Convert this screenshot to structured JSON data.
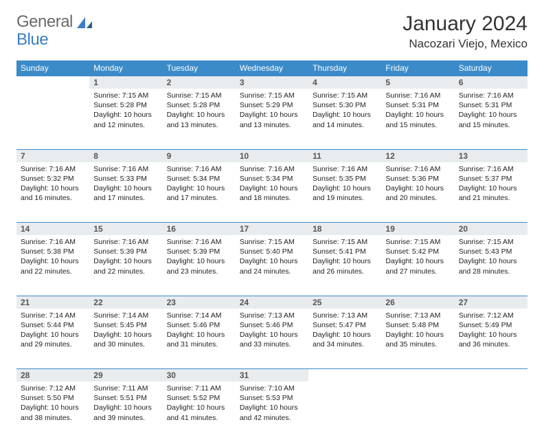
{
  "header": {
    "logo_part1": "General",
    "logo_part2": "Blue",
    "month_title": "January 2024",
    "location": "Nacozari Viejo, Mexico"
  },
  "colors": {
    "header_bg": "#3b8bc9",
    "header_text": "#ffffff",
    "daynum_bg": "#e9ecef",
    "border": "#3b8bc9",
    "body_text": "#222222",
    "logo_gray": "#6a6a6a",
    "logo_blue": "#3b7fc4"
  },
  "day_headers": [
    "Sunday",
    "Monday",
    "Tuesday",
    "Wednesday",
    "Thursday",
    "Friday",
    "Saturday"
  ],
  "weeks": [
    [
      {
        "num": "",
        "sunrise": "",
        "sunset": "",
        "daylight": ""
      },
      {
        "num": "1",
        "sunrise": "Sunrise: 7:15 AM",
        "sunset": "Sunset: 5:28 PM",
        "daylight": "Daylight: 10 hours and 12 minutes."
      },
      {
        "num": "2",
        "sunrise": "Sunrise: 7:15 AM",
        "sunset": "Sunset: 5:28 PM",
        "daylight": "Daylight: 10 hours and 13 minutes."
      },
      {
        "num": "3",
        "sunrise": "Sunrise: 7:15 AM",
        "sunset": "Sunset: 5:29 PM",
        "daylight": "Daylight: 10 hours and 13 minutes."
      },
      {
        "num": "4",
        "sunrise": "Sunrise: 7:15 AM",
        "sunset": "Sunset: 5:30 PM",
        "daylight": "Daylight: 10 hours and 14 minutes."
      },
      {
        "num": "5",
        "sunrise": "Sunrise: 7:16 AM",
        "sunset": "Sunset: 5:31 PM",
        "daylight": "Daylight: 10 hours and 15 minutes."
      },
      {
        "num": "6",
        "sunrise": "Sunrise: 7:16 AM",
        "sunset": "Sunset: 5:31 PM",
        "daylight": "Daylight: 10 hours and 15 minutes."
      }
    ],
    [
      {
        "num": "7",
        "sunrise": "Sunrise: 7:16 AM",
        "sunset": "Sunset: 5:32 PM",
        "daylight": "Daylight: 10 hours and 16 minutes."
      },
      {
        "num": "8",
        "sunrise": "Sunrise: 7:16 AM",
        "sunset": "Sunset: 5:33 PM",
        "daylight": "Daylight: 10 hours and 17 minutes."
      },
      {
        "num": "9",
        "sunrise": "Sunrise: 7:16 AM",
        "sunset": "Sunset: 5:34 PM",
        "daylight": "Daylight: 10 hours and 17 minutes."
      },
      {
        "num": "10",
        "sunrise": "Sunrise: 7:16 AM",
        "sunset": "Sunset: 5:34 PM",
        "daylight": "Daylight: 10 hours and 18 minutes."
      },
      {
        "num": "11",
        "sunrise": "Sunrise: 7:16 AM",
        "sunset": "Sunset: 5:35 PM",
        "daylight": "Daylight: 10 hours and 19 minutes."
      },
      {
        "num": "12",
        "sunrise": "Sunrise: 7:16 AM",
        "sunset": "Sunset: 5:36 PM",
        "daylight": "Daylight: 10 hours and 20 minutes."
      },
      {
        "num": "13",
        "sunrise": "Sunrise: 7:16 AM",
        "sunset": "Sunset: 5:37 PM",
        "daylight": "Daylight: 10 hours and 21 minutes."
      }
    ],
    [
      {
        "num": "14",
        "sunrise": "Sunrise: 7:16 AM",
        "sunset": "Sunset: 5:38 PM",
        "daylight": "Daylight: 10 hours and 22 minutes."
      },
      {
        "num": "15",
        "sunrise": "Sunrise: 7:16 AM",
        "sunset": "Sunset: 5:39 PM",
        "daylight": "Daylight: 10 hours and 22 minutes."
      },
      {
        "num": "16",
        "sunrise": "Sunrise: 7:16 AM",
        "sunset": "Sunset: 5:39 PM",
        "daylight": "Daylight: 10 hours and 23 minutes."
      },
      {
        "num": "17",
        "sunrise": "Sunrise: 7:15 AM",
        "sunset": "Sunset: 5:40 PM",
        "daylight": "Daylight: 10 hours and 24 minutes."
      },
      {
        "num": "18",
        "sunrise": "Sunrise: 7:15 AM",
        "sunset": "Sunset: 5:41 PM",
        "daylight": "Daylight: 10 hours and 26 minutes."
      },
      {
        "num": "19",
        "sunrise": "Sunrise: 7:15 AM",
        "sunset": "Sunset: 5:42 PM",
        "daylight": "Daylight: 10 hours and 27 minutes."
      },
      {
        "num": "20",
        "sunrise": "Sunrise: 7:15 AM",
        "sunset": "Sunset: 5:43 PM",
        "daylight": "Daylight: 10 hours and 28 minutes."
      }
    ],
    [
      {
        "num": "21",
        "sunrise": "Sunrise: 7:14 AM",
        "sunset": "Sunset: 5:44 PM",
        "daylight": "Daylight: 10 hours and 29 minutes."
      },
      {
        "num": "22",
        "sunrise": "Sunrise: 7:14 AM",
        "sunset": "Sunset: 5:45 PM",
        "daylight": "Daylight: 10 hours and 30 minutes."
      },
      {
        "num": "23",
        "sunrise": "Sunrise: 7:14 AM",
        "sunset": "Sunset: 5:46 PM",
        "daylight": "Daylight: 10 hours and 31 minutes."
      },
      {
        "num": "24",
        "sunrise": "Sunrise: 7:13 AM",
        "sunset": "Sunset: 5:46 PM",
        "daylight": "Daylight: 10 hours and 33 minutes."
      },
      {
        "num": "25",
        "sunrise": "Sunrise: 7:13 AM",
        "sunset": "Sunset: 5:47 PM",
        "daylight": "Daylight: 10 hours and 34 minutes."
      },
      {
        "num": "26",
        "sunrise": "Sunrise: 7:13 AM",
        "sunset": "Sunset: 5:48 PM",
        "daylight": "Daylight: 10 hours and 35 minutes."
      },
      {
        "num": "27",
        "sunrise": "Sunrise: 7:12 AM",
        "sunset": "Sunset: 5:49 PM",
        "daylight": "Daylight: 10 hours and 36 minutes."
      }
    ],
    [
      {
        "num": "28",
        "sunrise": "Sunrise: 7:12 AM",
        "sunset": "Sunset: 5:50 PM",
        "daylight": "Daylight: 10 hours and 38 minutes."
      },
      {
        "num": "29",
        "sunrise": "Sunrise: 7:11 AM",
        "sunset": "Sunset: 5:51 PM",
        "daylight": "Daylight: 10 hours and 39 minutes."
      },
      {
        "num": "30",
        "sunrise": "Sunrise: 7:11 AM",
        "sunset": "Sunset: 5:52 PM",
        "daylight": "Daylight: 10 hours and 41 minutes."
      },
      {
        "num": "31",
        "sunrise": "Sunrise: 7:10 AM",
        "sunset": "Sunset: 5:53 PM",
        "daylight": "Daylight: 10 hours and 42 minutes."
      },
      {
        "num": "",
        "sunrise": "",
        "sunset": "",
        "daylight": ""
      },
      {
        "num": "",
        "sunrise": "",
        "sunset": "",
        "daylight": ""
      },
      {
        "num": "",
        "sunrise": "",
        "sunset": "",
        "daylight": ""
      }
    ]
  ]
}
